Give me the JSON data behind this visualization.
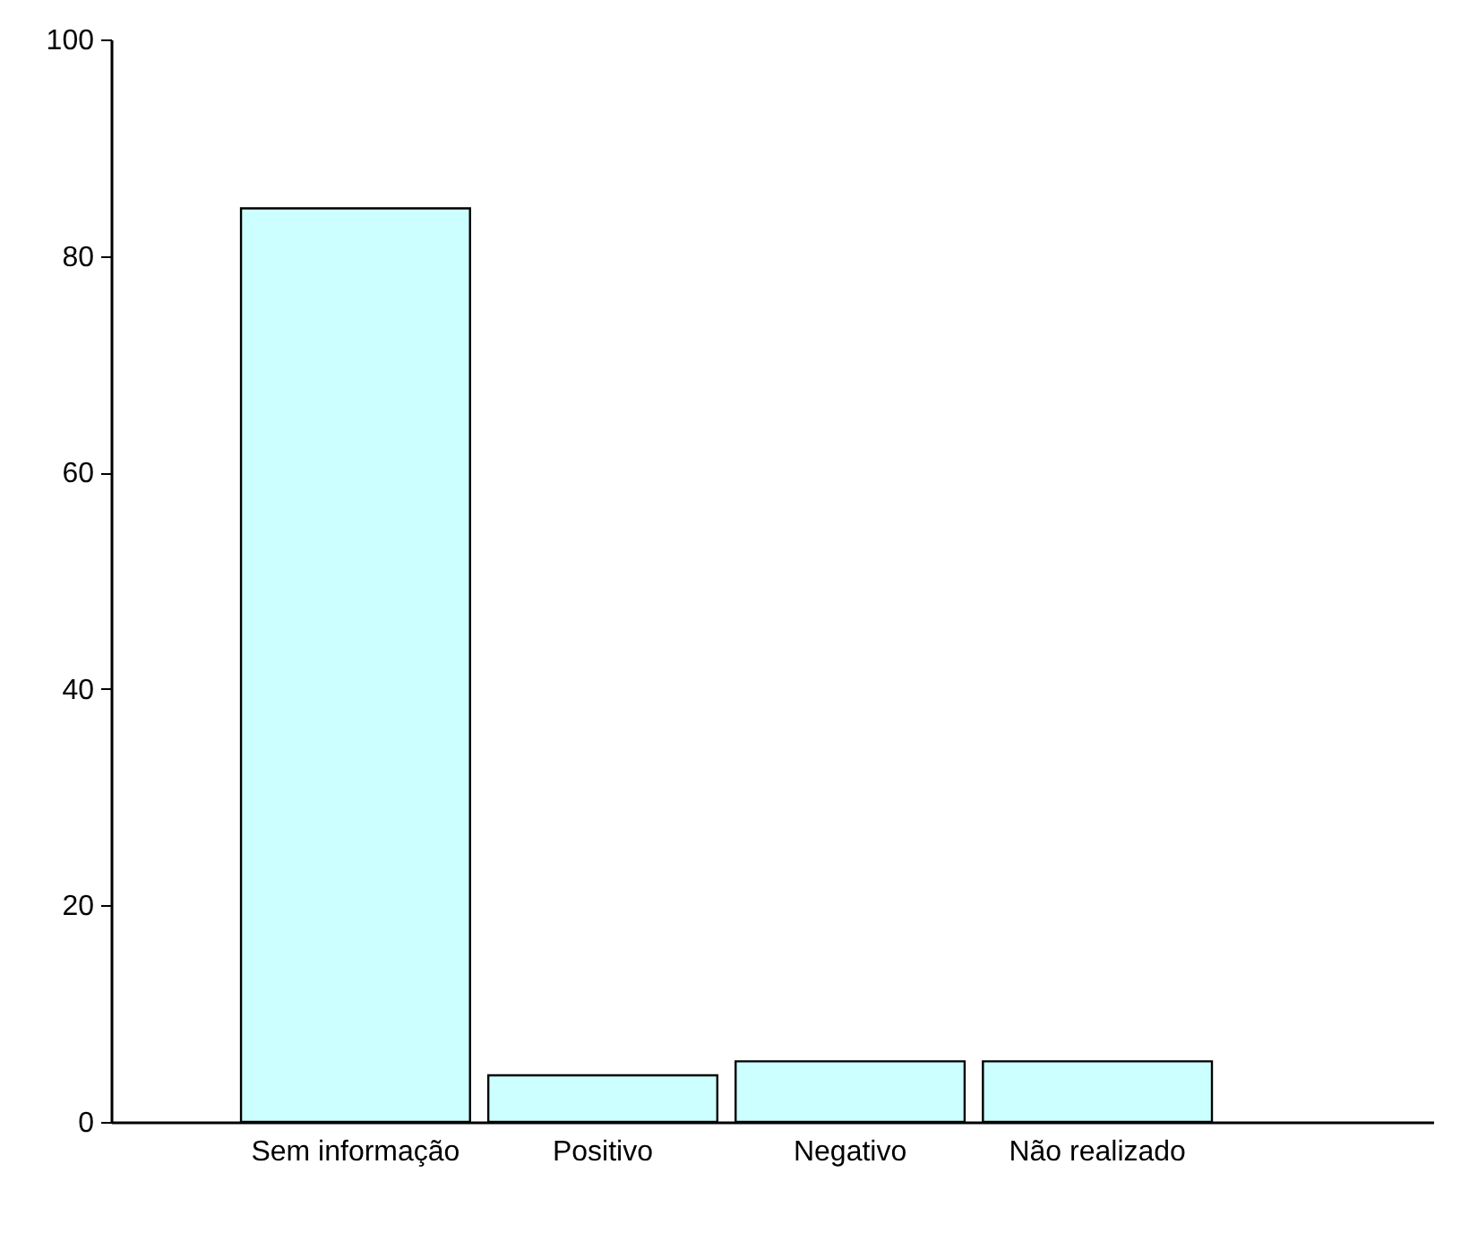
{
  "chart_data": {
    "type": "bar",
    "categories": [
      "Sem informação",
      "Positivo",
      "Negativo",
      "Não realizado"
    ],
    "values": [
      84.4,
      4.3,
      5.6,
      5.6
    ],
    "color": "#ccffff",
    "ylim": [
      0,
      100
    ],
    "yticks": [
      0,
      20,
      40,
      60,
      80,
      100
    ],
    "grid": false
  }
}
